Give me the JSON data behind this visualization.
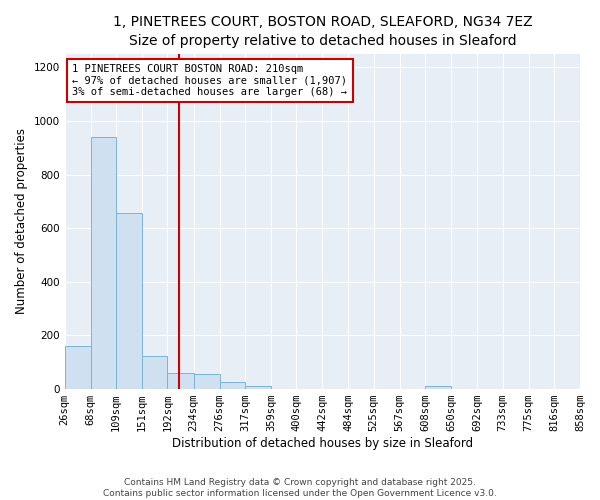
{
  "title_line1": "1, PINETREES COURT, BOSTON ROAD, SLEAFORD, NG34 7EZ",
  "title_line2": "Size of property relative to detached houses in Sleaford",
  "xlabel": "Distribution of detached houses by size in Sleaford",
  "ylabel": "Number of detached properties",
  "bin_edges": [
    26,
    68,
    109,
    151,
    192,
    234,
    276,
    317,
    359,
    400,
    442,
    484,
    525,
    567,
    608,
    650,
    692,
    733,
    775,
    816,
    858
  ],
  "bar_heights": [
    160,
    940,
    655,
    125,
    60,
    55,
    25,
    12,
    2,
    0,
    0,
    0,
    0,
    0,
    12,
    0,
    0,
    0,
    0,
    0
  ],
  "bar_color": "#cfe0f0",
  "bar_edge_color": "#7bb4d8",
  "property_size": 210,
  "red_line_color": "#cc0000",
  "annotation_text": "1 PINETREES COURT BOSTON ROAD: 210sqm\n← 97% of detached houses are smaller (1,907)\n3% of semi-detached houses are larger (68) →",
  "annotation_box_color": "#ffffff",
  "annotation_border_color": "#cc0000",
  "ylim": [
    0,
    1250
  ],
  "yticks": [
    0,
    200,
    400,
    600,
    800,
    1000,
    1200
  ],
  "footer_text": "Contains HM Land Registry data © Crown copyright and database right 2025.\nContains public sector information licensed under the Open Government Licence v3.0.",
  "bg_color": "#ffffff",
  "plot_bg_color": "#e8eef5",
  "title_fontsize": 10,
  "subtitle_fontsize": 9,
  "axis_label_fontsize": 8.5,
  "tick_fontsize": 7.5,
  "annotation_fontsize": 7.5,
  "footer_fontsize": 6.5
}
